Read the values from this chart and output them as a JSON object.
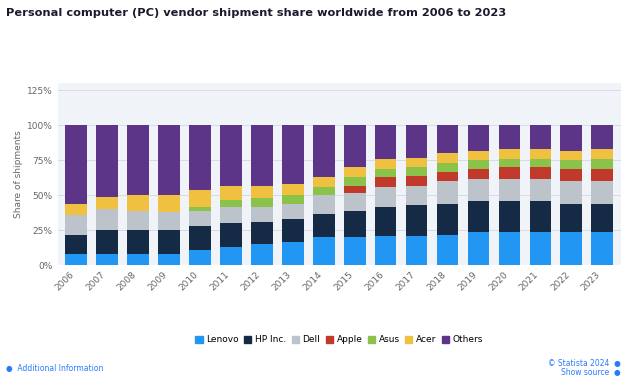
{
  "years": [
    2006,
    2007,
    2008,
    2009,
    2010,
    2011,
    2012,
    2013,
    2014,
    2015,
    2016,
    2017,
    2018,
    2019,
    2020,
    2021,
    2022,
    2023
  ],
  "vendors": [
    "Lenovo",
    "HP Inc.",
    "Dell",
    "Apple",
    "Asus",
    "Acer",
    "Others"
  ],
  "colors": [
    "#2196F3",
    "#152b45",
    "#bdc3ca",
    "#c0392b",
    "#8bc34a",
    "#f0c040",
    "#5c3589"
  ],
  "data": {
    "Lenovo": [
      8,
      8,
      8,
      8,
      11,
      13,
      15,
      17,
      20,
      20,
      21,
      21,
      22,
      24,
      24,
      24,
      24,
      24
    ],
    "HP Inc.": [
      14,
      17,
      17,
      17,
      17,
      17,
      16,
      16,
      17,
      19,
      21,
      22,
      22,
      22,
      22,
      22,
      20,
      20
    ],
    "Dell": [
      14,
      15,
      14,
      13,
      11,
      12,
      11,
      11,
      13,
      13,
      14,
      14,
      16,
      16,
      16,
      16,
      16,
      16
    ],
    "Apple": [
      0,
      0,
      0,
      0,
      0,
      0,
      0,
      0,
      0,
      5,
      7,
      7,
      7,
      7,
      8,
      8,
      9,
      9
    ],
    "Asus": [
      0,
      0,
      0,
      0,
      3,
      5,
      6,
      6,
      6,
      6,
      6,
      6,
      6,
      6,
      6,
      6,
      6,
      7
    ],
    "Acer": [
      8,
      9,
      11,
      12,
      12,
      10,
      9,
      8,
      7,
      7,
      7,
      7,
      7,
      7,
      7,
      7,
      7,
      7
    ],
    "Others": [
      56,
      51,
      50,
      50,
      46,
      43,
      43,
      42,
      37,
      30,
      24,
      23,
      20,
      18,
      17,
      17,
      18,
      17
    ]
  },
  "title": "Personal computer (PC) vendor shipment share worldwide from 2006 to 2023",
  "ylabel": "Share of shipments",
  "yticks": [
    0,
    25,
    50,
    75,
    100,
    125
  ],
  "ytick_labels": [
    "0%",
    "25%",
    "50%",
    "75%",
    "100%",
    "125%"
  ],
  "ylim": [
    0,
    130
  ],
  "background_color": "#ffffff",
  "plot_bg_color": "#f0f4f8",
  "grid_color": "#d5dce6",
  "title_color": "#1a1a2e",
  "axis_label_color": "#666666",
  "bar_width": 0.7
}
